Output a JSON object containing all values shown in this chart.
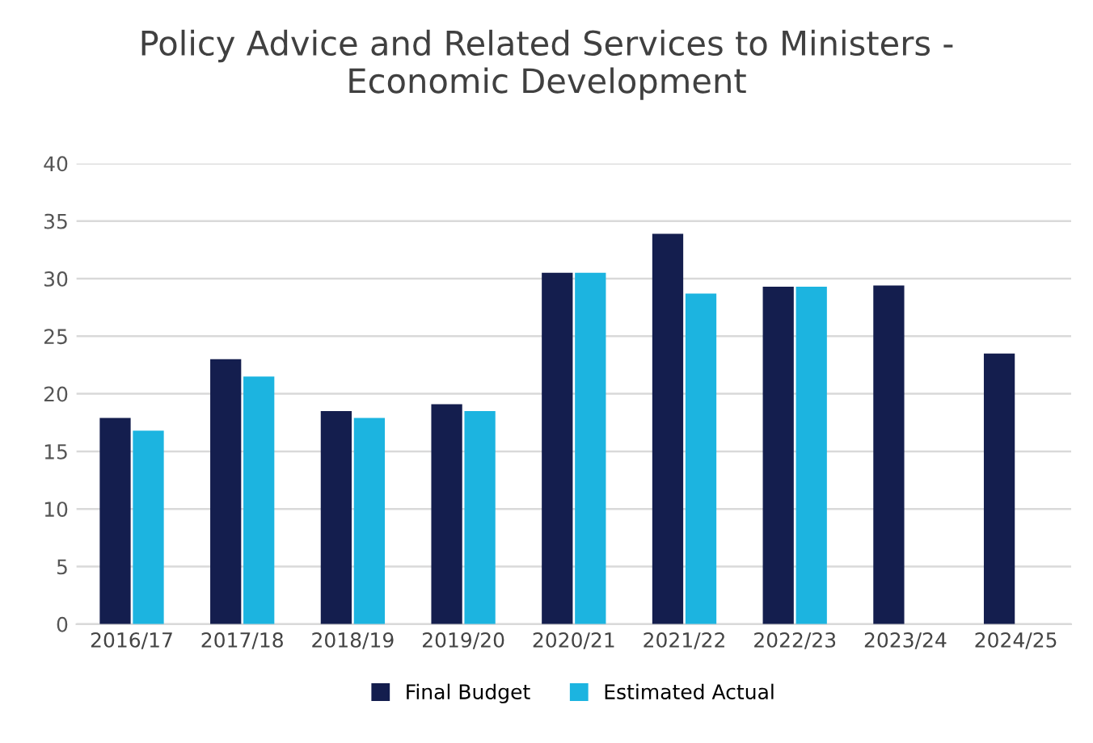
{
  "chart_data": {
    "type": "bar",
    "title": "Policy Advice and Related Services to Ministers -\nEconomic Development",
    "categories": [
      "2016/17",
      "2017/18",
      "2018/19",
      "2019/20",
      "2020/21",
      "2021/22",
      "2022/23",
      "2023/24",
      "2024/25"
    ],
    "series": [
      {
        "name": "Final Budget",
        "color": "#141e4e",
        "values": [
          17.9,
          23.0,
          18.5,
          19.1,
          30.5,
          33.9,
          29.3,
          29.4,
          23.5
        ]
      },
      {
        "name": "Estimated Actual",
        "color": "#1cb4e0",
        "values": [
          16.8,
          21.5,
          17.9,
          18.5,
          30.5,
          28.7,
          29.3,
          null,
          null
        ]
      }
    ],
    "ylim": [
      0,
      40
    ],
    "yticks": [
      0,
      5,
      10,
      15,
      20,
      25,
      30,
      35,
      40
    ],
    "grid": "y",
    "legend": "bottom"
  }
}
